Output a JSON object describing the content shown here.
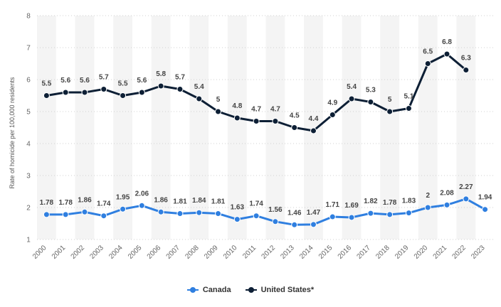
{
  "chart_data": {
    "type": "line",
    "ylabel": "Rate of homicide per 100,000 residents",
    "xlabel": "",
    "ylim": [
      1,
      8
    ],
    "yticks": [
      1,
      2,
      3,
      4,
      5,
      6,
      7,
      8
    ],
    "grid": "horizontal dotted, alternating column shading",
    "legend_position": "bottom-center",
    "categories": [
      "2000",
      "2001",
      "2002",
      "2003",
      "2004",
      "2005",
      "2006",
      "2007",
      "2008",
      "2009",
      "2010",
      "2011",
      "2012",
      "2013",
      "2014",
      "2015",
      "2016",
      "2017",
      "2018",
      "2019",
      "2020",
      "2021",
      "2022",
      "2023"
    ],
    "series": [
      {
        "name": "Canada",
        "color": "#2f7fe0",
        "values": [
          1.78,
          1.78,
          1.86,
          1.74,
          1.95,
          2.06,
          1.86,
          1.81,
          1.84,
          1.81,
          1.63,
          1.74,
          1.56,
          1.46,
          1.47,
          1.71,
          1.69,
          1.82,
          1.78,
          1.83,
          2,
          2.08,
          2.27,
          1.94
        ],
        "labels": [
          "1.78",
          "1.78",
          "1.86",
          "1.74",
          "1.95",
          "2.06",
          "1.86",
          "1.81",
          "1.84",
          "1.81",
          "1.63",
          "1.74",
          "1.56",
          "1.46",
          "1.47",
          "1.71",
          "1.69",
          "1.82",
          "1.78",
          "1.83",
          "2",
          "2.08",
          "2.27",
          "1.94"
        ]
      },
      {
        "name": "United States*",
        "color": "#0d1f35",
        "values": [
          5.5,
          5.6,
          5.6,
          5.7,
          5.5,
          5.6,
          5.8,
          5.7,
          5.4,
          5,
          4.8,
          4.7,
          4.7,
          4.5,
          4.4,
          4.9,
          5.4,
          5.3,
          5,
          5.1,
          6.5,
          6.8,
          6.3,
          null
        ],
        "labels": [
          "5.5",
          "5.6",
          "5.6",
          "5.7",
          "5.5",
          "5.6",
          "5.8",
          "5.7",
          "5.4",
          "5",
          "4.8",
          "4.7",
          "4.7",
          "4.5",
          "4.4",
          "4.9",
          "5.4",
          "5.3",
          "5",
          "5.1",
          "6.5",
          "6.8",
          "6.3",
          null
        ]
      }
    ]
  }
}
